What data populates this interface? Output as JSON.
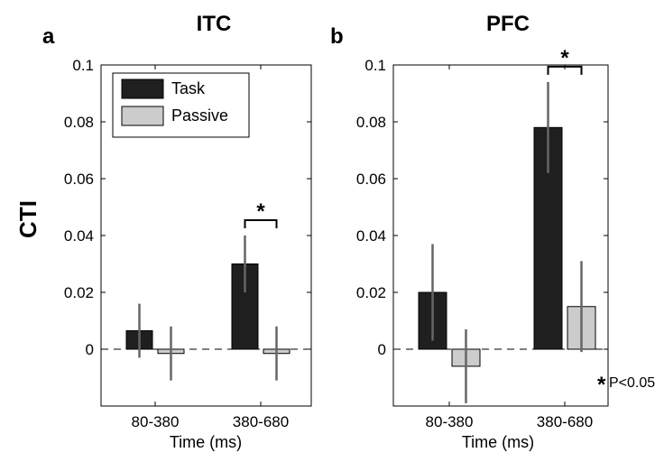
{
  "figure": {
    "ylabel": "CTI",
    "significance_note": "P<0.05",
    "significance_marker": "*"
  },
  "colors": {
    "task": "#1f1f1f",
    "passive": "#cccccc",
    "error_bar": "#666666"
  },
  "chart_data": [
    {
      "type": "bar",
      "panel_label": "a",
      "title": "ITC",
      "xlabel": "Time (ms)",
      "ylabel": "CTI",
      "categories": [
        "80-380",
        "380-680"
      ],
      "series": [
        {
          "name": "Task",
          "values": [
            0.0065,
            0.03
          ],
          "errors": [
            0.0095,
            0.01
          ]
        },
        {
          "name": "Passive",
          "values": [
            -0.0015,
            -0.0015
          ],
          "errors": [
            0.0095,
            0.0095
          ]
        }
      ],
      "ylim": [
        -0.02,
        0.1
      ],
      "yticks": [
        "0",
        "0.02",
        "0.04",
        "0.06",
        "0.08",
        "0.1"
      ],
      "legend": {
        "placement": "top-left",
        "entries": [
          "Task",
          "Passive"
        ]
      },
      "significance": [
        {
          "category": "380-680",
          "label": "*"
        }
      ],
      "zero_line": "dashed",
      "grid": false
    },
    {
      "type": "bar",
      "panel_label": "b",
      "title": "PFC",
      "xlabel": "Time (ms)",
      "categories": [
        "80-380",
        "380-680"
      ],
      "series": [
        {
          "name": "Task",
          "values": [
            0.02,
            0.078
          ],
          "errors": [
            0.017,
            0.016
          ]
        },
        {
          "name": "Passive",
          "values": [
            -0.006,
            0.015
          ],
          "errors": [
            0.013,
            0.016
          ]
        }
      ],
      "ylim": [
        -0.02,
        0.1
      ],
      "yticks": [
        "0",
        "0.02",
        "0.04",
        "0.06",
        "0.08",
        "0.1"
      ],
      "significance": [
        {
          "category": "380-680",
          "label": "*"
        }
      ],
      "zero_line": "dashed",
      "grid": false
    }
  ]
}
